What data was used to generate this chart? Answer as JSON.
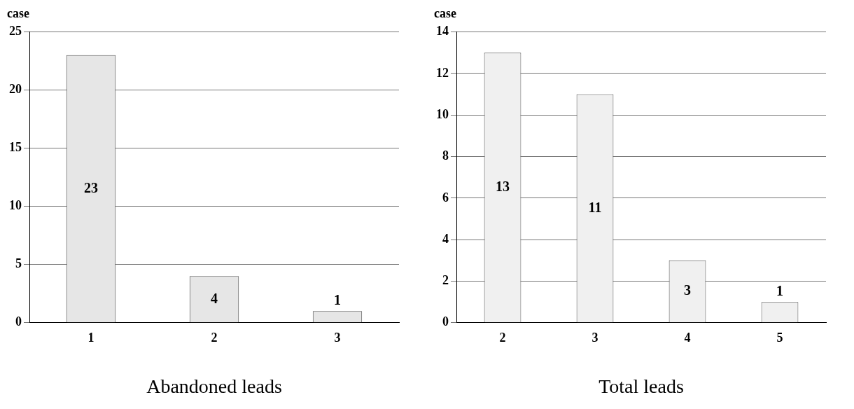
{
  "chart_data": [
    {
      "type": "bar",
      "ylabel": "case",
      "xlabel": "Abandoned leads",
      "categories": [
        "1",
        "2",
        "3"
      ],
      "values": [
        23,
        4,
        1
      ],
      "color": "#e6e6e6",
      "ylim": [
        0,
        25
      ],
      "yticks": [
        0,
        5,
        10,
        15,
        20,
        25
      ],
      "grid": "y",
      "data_labels": true,
      "legend": false
    },
    {
      "type": "bar",
      "ylabel": "case",
      "xlabel": "Total leads",
      "categories": [
        "2",
        "3",
        "4",
        "5"
      ],
      "values": [
        13,
        11,
        3,
        1
      ],
      "color": "#f0f0f0",
      "ylim": [
        0,
        14
      ],
      "yticks": [
        0,
        2,
        4,
        6,
        8,
        10,
        12,
        14
      ],
      "grid": "y",
      "data_labels": true,
      "legend": false
    }
  ]
}
